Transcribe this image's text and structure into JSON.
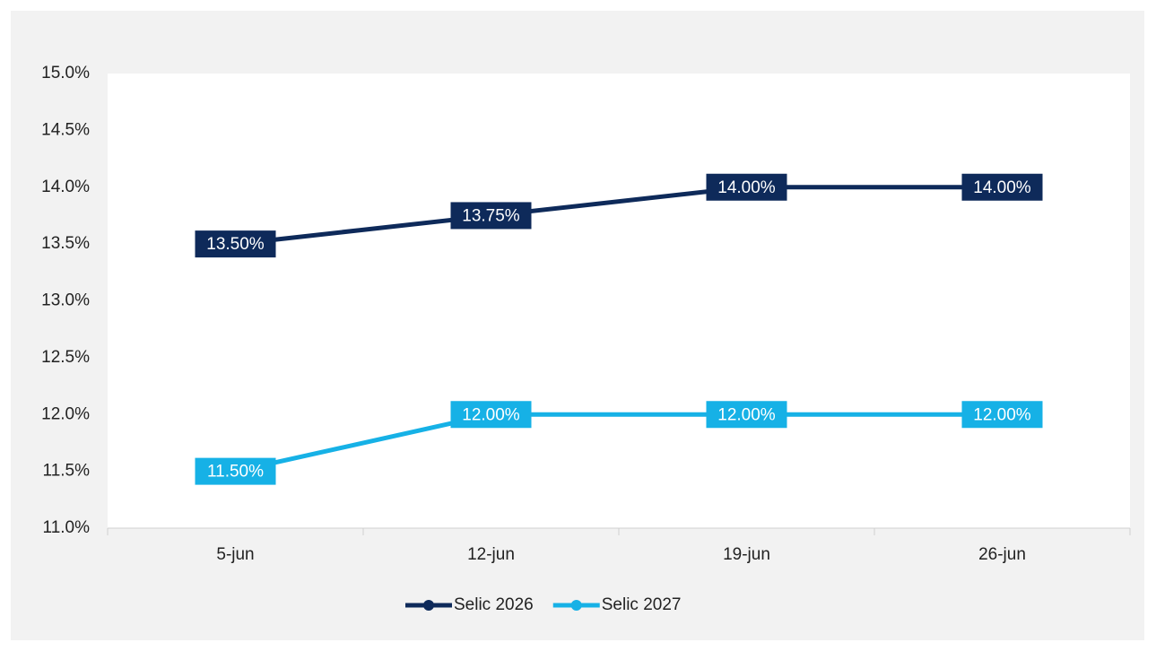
{
  "chart_data": {
    "type": "line",
    "categories": [
      "5-jun",
      "12-jun",
      "19-jun",
      "26-jun"
    ],
    "series": [
      {
        "name": "Selic 2026",
        "color": "#0e2a5a",
        "values": [
          13.5,
          13.75,
          14.0,
          14.0
        ],
        "value_labels": [
          "13.50%",
          "13.75%",
          "14.00%",
          "14.00%"
        ]
      },
      {
        "name": "Selic 2027",
        "color": "#16b1e6",
        "values": [
          11.5,
          12.0,
          12.0,
          12.0
        ],
        "value_labels": [
          "11.50%",
          "12.00%",
          "12.00%",
          "12.00%"
        ]
      }
    ],
    "ylim": [
      11.0,
      15.0
    ],
    "yticks": [
      {
        "value": 11.0,
        "label": "11.0%"
      },
      {
        "value": 11.5,
        "label": "11.5%"
      },
      {
        "value": 12.0,
        "label": "12.0%"
      },
      {
        "value": 12.5,
        "label": "12.5%"
      },
      {
        "value": 13.0,
        "label": "13.0%"
      },
      {
        "value": 13.5,
        "label": "13.5%"
      },
      {
        "value": 14.0,
        "label": "14.0%"
      },
      {
        "value": 14.5,
        "label": "14.5%"
      },
      {
        "value": 15.0,
        "label": "15.0%"
      }
    ],
    "grid": false,
    "legend": "bottom"
  }
}
